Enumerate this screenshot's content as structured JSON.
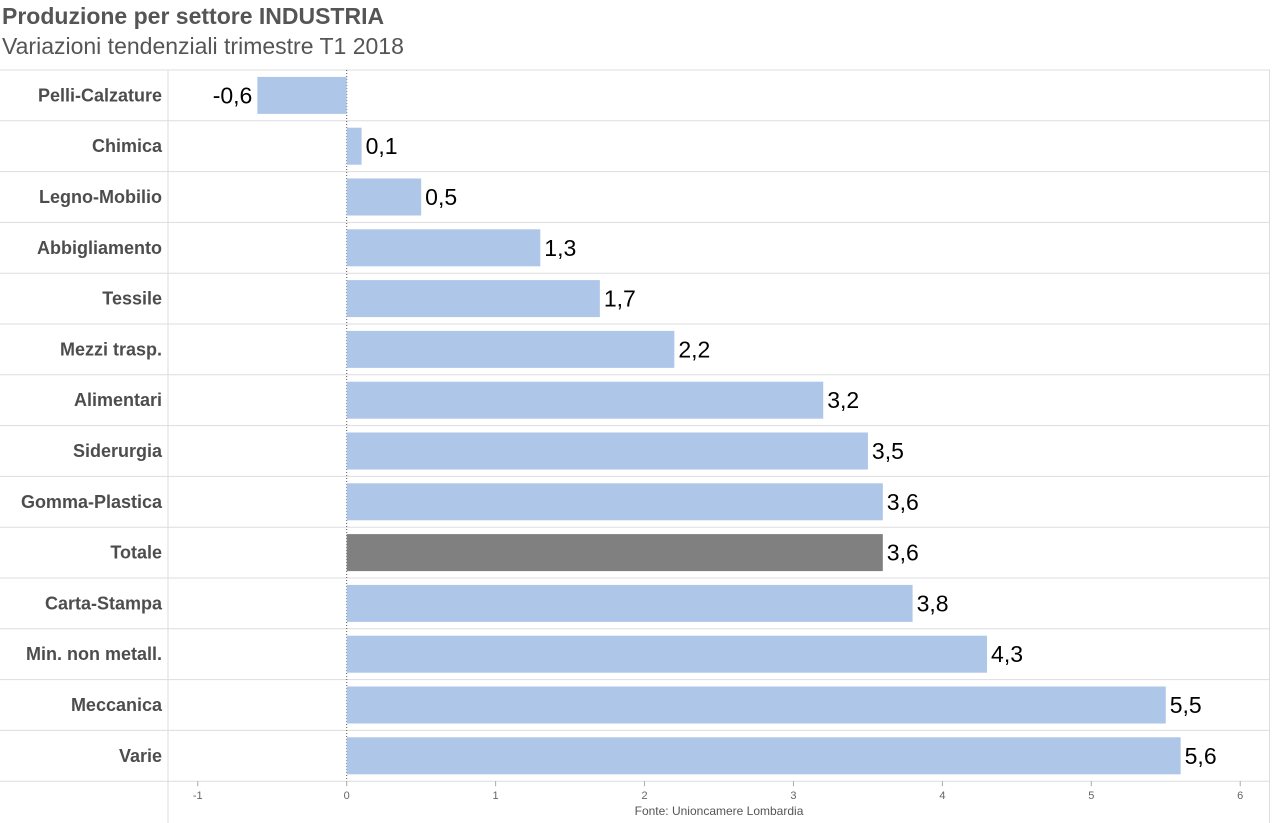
{
  "chart_data": {
    "type": "bar",
    "orientation": "horizontal",
    "title": "Produzione per settore INDUSTRIA",
    "subtitle": "Variazioni tendenziali trimestre T1 2018",
    "source": "Fonte: Unioncamere Lombardia",
    "categories": [
      "Pelli-Calzature",
      "Chimica",
      "Legno-Mobilio",
      "Abbigliamento",
      "Tessile",
      "Mezzi trasp.",
      "Alimentari",
      "Siderurgia",
      "Gomma-Plastica",
      "Totale",
      "Carta-Stampa",
      "Min. non metall.",
      "Meccanica",
      "Varie"
    ],
    "values": [
      -0.6,
      0.1,
      0.5,
      1.3,
      1.7,
      2.2,
      3.2,
      3.5,
      3.6,
      3.6,
      3.8,
      4.3,
      5.5,
      5.6
    ],
    "value_labels": [
      "-0,6",
      "0,1",
      "0,5",
      "1,3",
      "1,7",
      "2,2",
      "3,2",
      "3,5",
      "3,6",
      "3,6",
      "3,8",
      "4,3",
      "5,5",
      "5,6"
    ],
    "highlight_category": "Totale",
    "xlim": [
      -1.2,
      6.2
    ],
    "xticks": [
      -1,
      0,
      1,
      2,
      3,
      4,
      5,
      6
    ],
    "xtick_labels": [
      "-1",
      "0",
      "1",
      "2",
      "3",
      "4",
      "5",
      "6"
    ],
    "grid": true,
    "colors": {
      "bar": "#aec6e8",
      "highlight": "#808080",
      "grid": "#dddddd",
      "zero_line": "#555555"
    }
  }
}
